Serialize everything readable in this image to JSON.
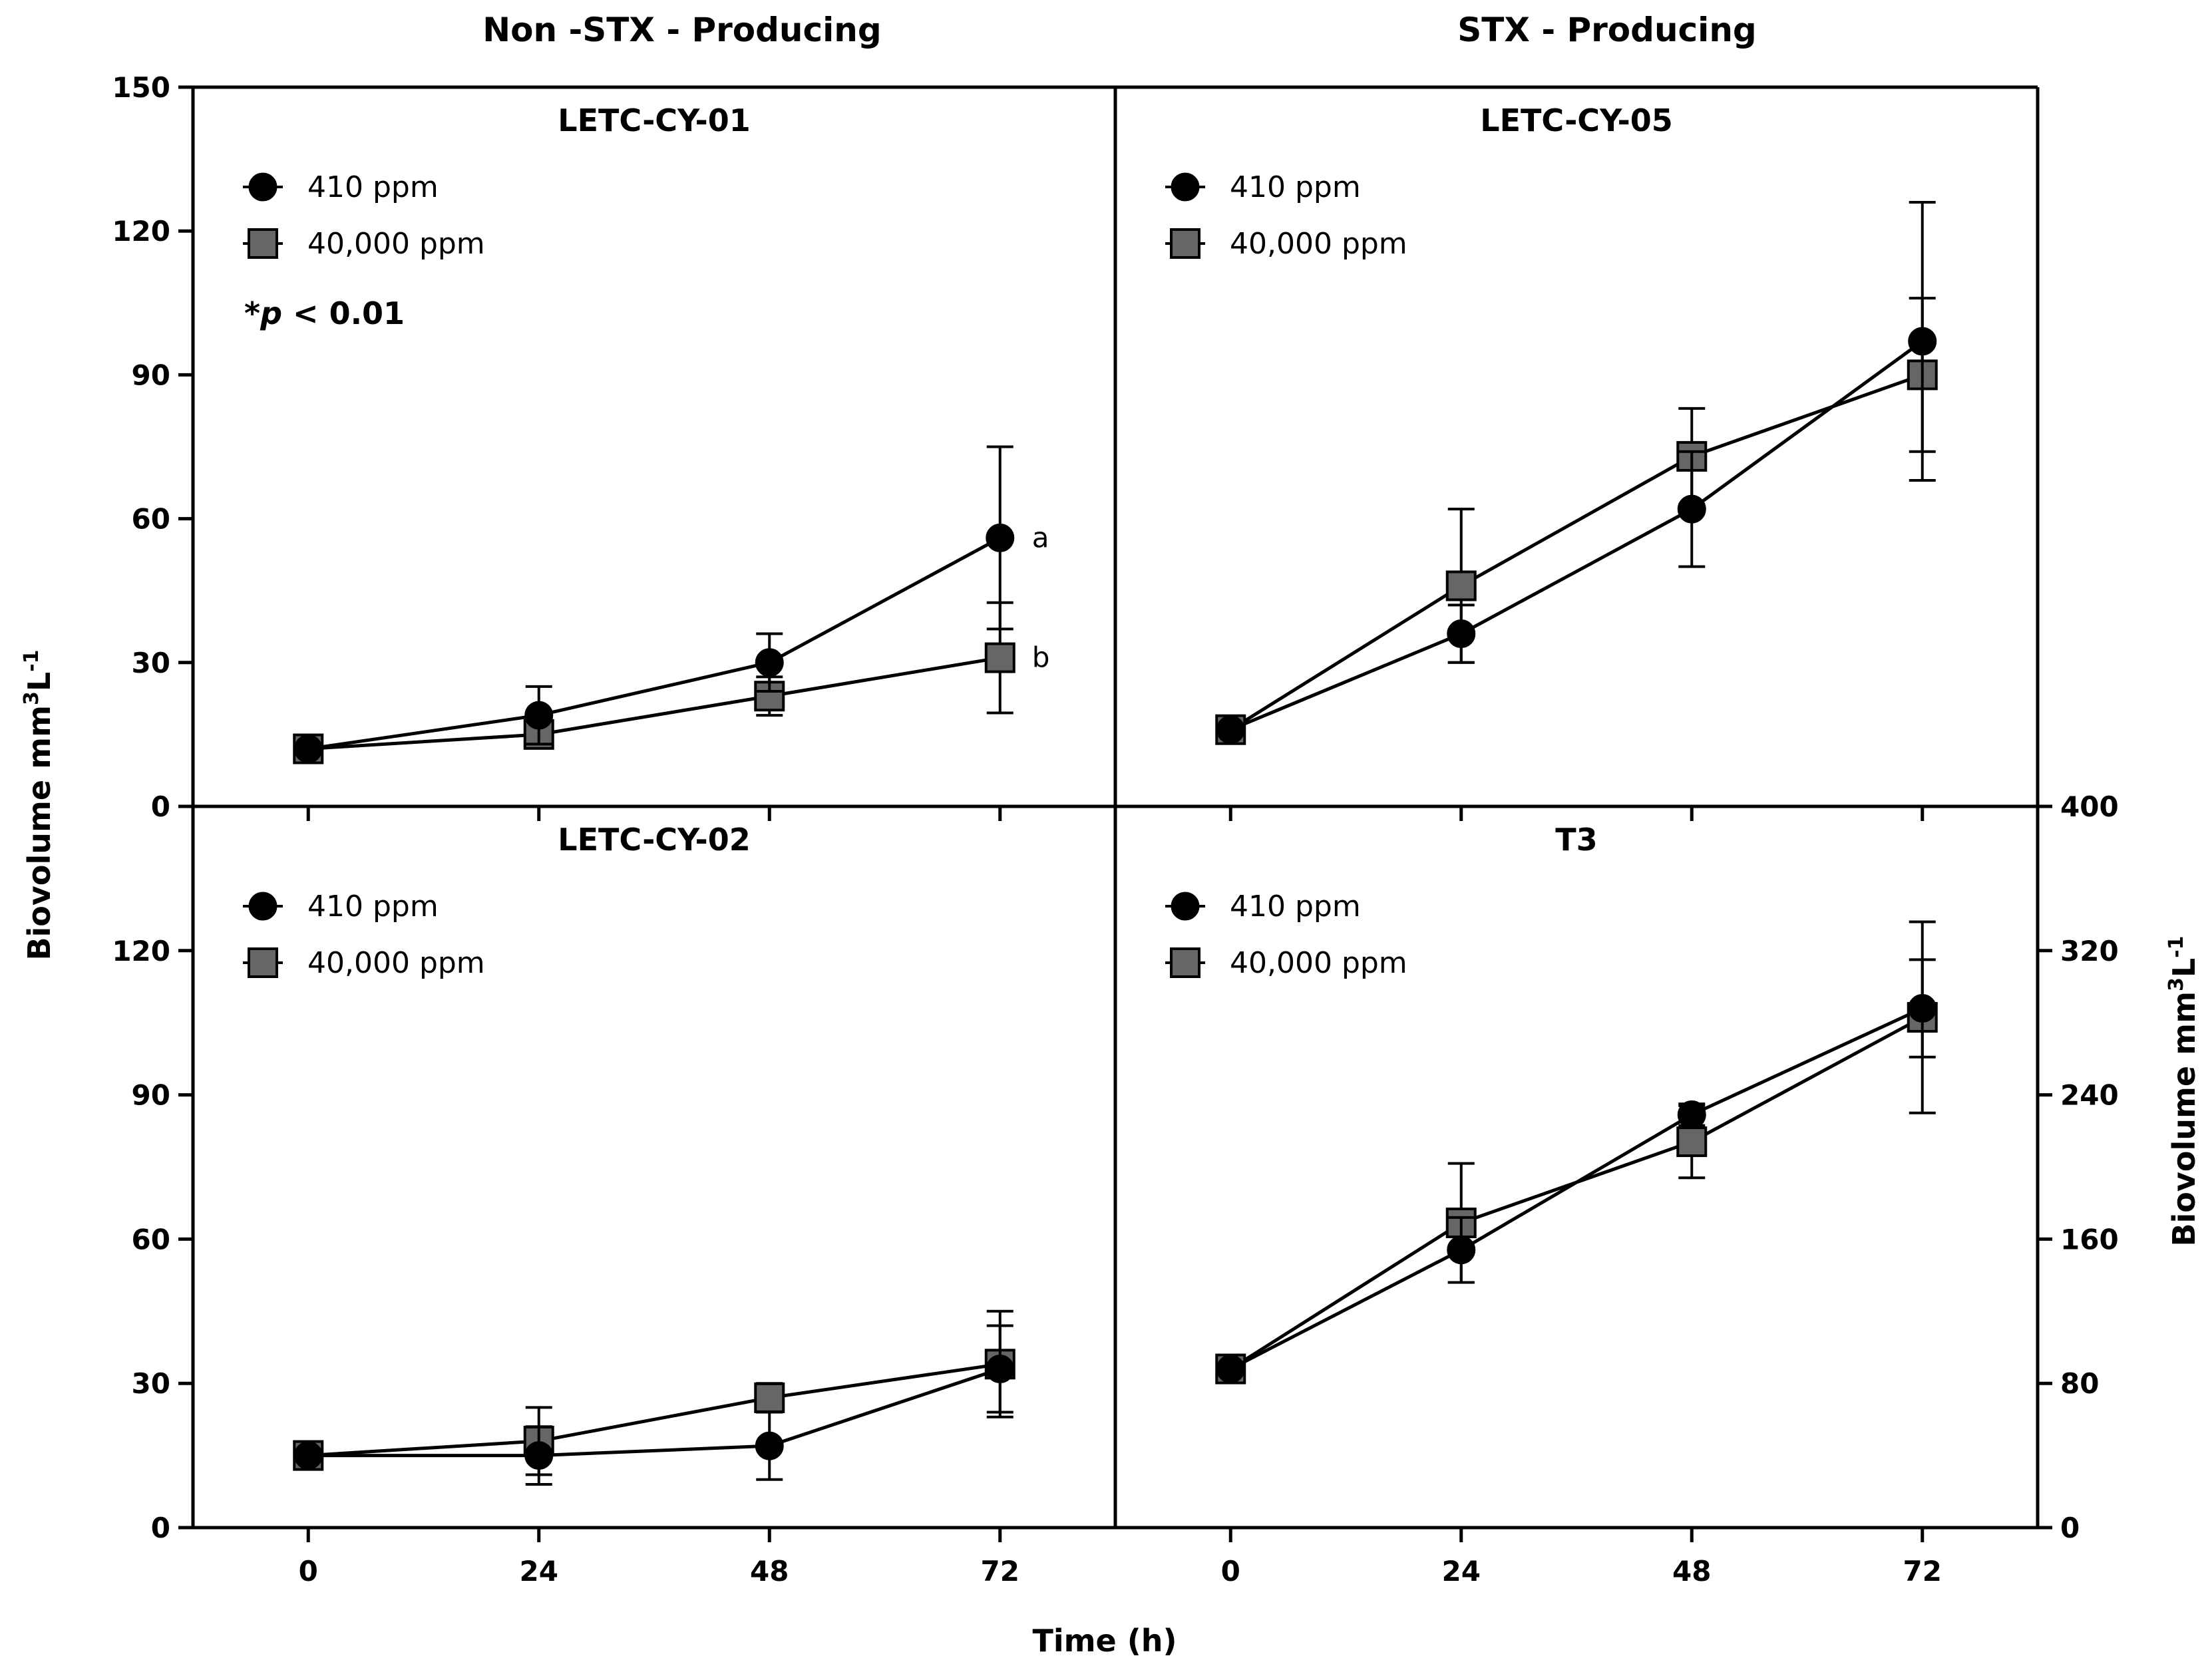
{
  "figure": {
    "column_titles": [
      "Non -STX - Producing",
      "STX - Producing"
    ],
    "xlabel": "Time (h)",
    "ylabel_left": {
      "main": "Biovolume  mm",
      "sup1": "3",
      "mid": "L",
      "sup2": "-1"
    },
    "ylabel_right": {
      "main": "Biovolume  mm",
      "sup1": "3",
      "mid": "L",
      "sup2": "-1"
    },
    "colors": {
      "series_410": "#000000",
      "series_40000": "#666666",
      "axis": "#000000"
    }
  },
  "chart_data": [
    {
      "type": "line",
      "title": "LETC-CY-01",
      "x": [
        0,
        24,
        48,
        72
      ],
      "xlim": [
        -12,
        84
      ],
      "ylim": [
        0,
        150
      ],
      "yticks": [
        0,
        30,
        60,
        90,
        120,
        150
      ],
      "legend_position": "top-left",
      "annotation": {
        "prefix": "*",
        "p": "p",
        "text": " < 0.01"
      },
      "series": [
        {
          "name": "410 ppm",
          "marker": "circle",
          "values": [
            12,
            19,
            30,
            56
          ],
          "error": [
            0.5,
            6,
            6,
            19
          ],
          "end_label": "a"
        },
        {
          "name": "40,000 ppm",
          "marker": "square",
          "values": [
            12,
            15,
            23,
            31
          ],
          "error": [
            0.5,
            2,
            4,
            11.5
          ],
          "end_label": "b"
        }
      ]
    },
    {
      "type": "line",
      "title": "LETC-CY-05",
      "x": [
        0,
        24,
        48,
        72
      ],
      "xlim": [
        -12,
        84
      ],
      "ylim": [
        0,
        150
      ],
      "legend_position": "top-left",
      "series": [
        {
          "name": "410 ppm",
          "marker": "circle",
          "values": [
            16,
            36,
            62,
            97
          ],
          "error": [
            0.5,
            6,
            12,
            29
          ]
        },
        {
          "name": "40,000 ppm",
          "marker": "square",
          "values": [
            16,
            46,
            73,
            90
          ],
          "error": [
            0.5,
            16,
            10,
            16
          ]
        }
      ]
    },
    {
      "type": "line",
      "title": "LETC-CY-02",
      "x": [
        0,
        24,
        48,
        72
      ],
      "xlim": [
        -12,
        84
      ],
      "ylim": [
        0,
        150
      ],
      "yticks": [
        0,
        30,
        60,
        90,
        120
      ],
      "xticks": [
        0,
        24,
        48,
        72
      ],
      "legend_position": "top-left",
      "series": [
        {
          "name": "410 ppm",
          "marker": "circle",
          "values": [
            15,
            15,
            17,
            33
          ],
          "error": [
            0.5,
            6,
            7,
            9
          ]
        },
        {
          "name": "40,000 ppm",
          "marker": "square",
          "values": [
            15,
            18,
            27,
            34
          ],
          "error": [
            0.5,
            7,
            3,
            11
          ]
        }
      ]
    },
    {
      "type": "line",
      "title": "T3",
      "x": [
        0,
        24,
        48,
        72
      ],
      "xlim": [
        -12,
        84
      ],
      "ylim": [
        0,
        400
      ],
      "yticks": [
        0,
        80,
        160,
        240,
        320,
        400
      ],
      "xticks": [
        0,
        24,
        48,
        72
      ],
      "legend_position": "top-left",
      "series": [
        {
          "name": "410 ppm",
          "marker": "circle",
          "values": [
            88,
            154,
            229,
            288
          ],
          "error": [
            1,
            18,
            6,
            27
          ]
        },
        {
          "name": "40,000 ppm",
          "marker": "square",
          "values": [
            88,
            169,
            214,
            283
          ],
          "error": [
            1,
            33,
            20,
            53
          ]
        }
      ]
    }
  ]
}
